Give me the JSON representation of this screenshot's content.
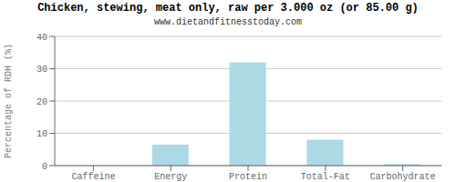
{
  "chart_data": {
    "type": "bar",
    "title": "Chicken, stewing, meat only, raw per 3.000 oz (or 85.00 g)",
    "subtitle": "www.dietandfitnesstoday.com",
    "categories": [
      "Caffeine",
      "Energy",
      "Protein",
      "Total-Fat",
      "Carbohydrate"
    ],
    "values": [
      0,
      6.5,
      32,
      8,
      0.5
    ],
    "color": "#add8e6",
    "ylabel": "Percentage of RDH (%)",
    "ylim": [
      0,
      40
    ],
    "yticks": [
      0,
      10,
      20,
      30,
      40
    ],
    "grid": true
  }
}
